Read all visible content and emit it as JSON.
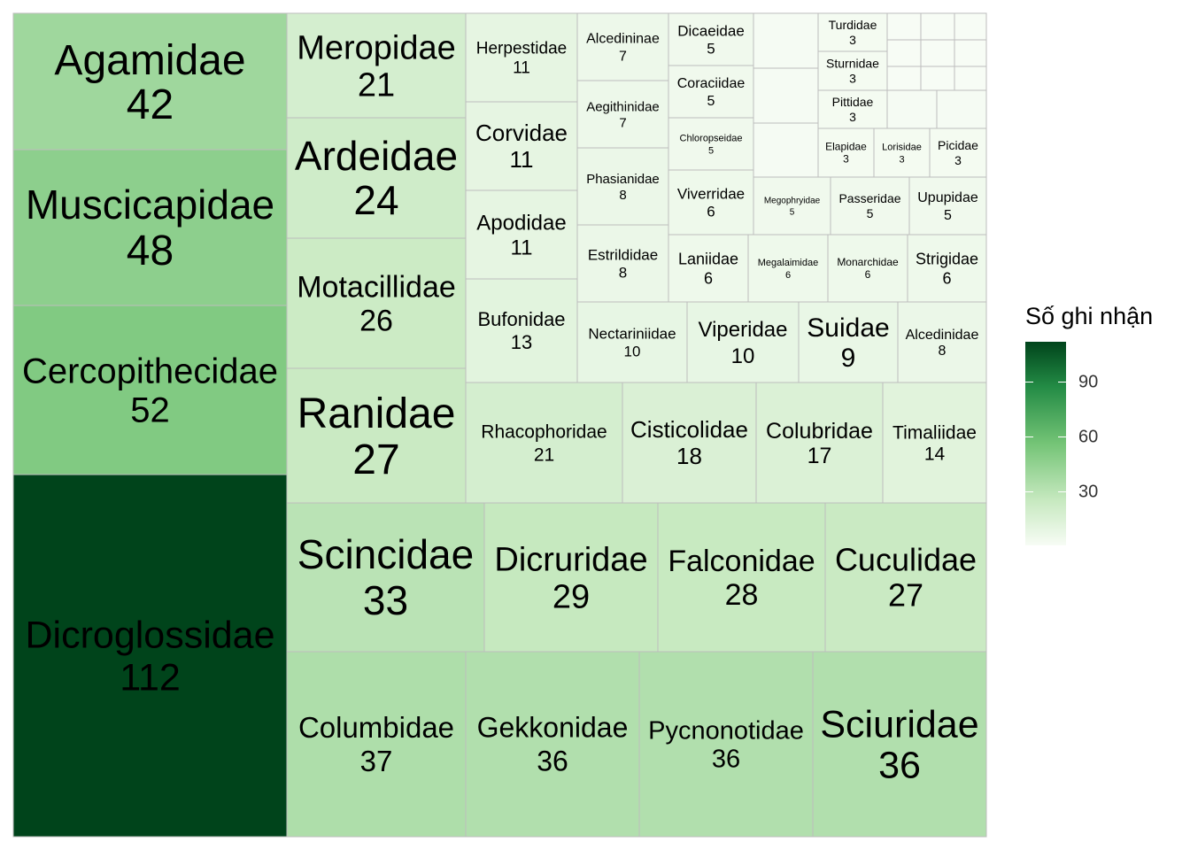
{
  "chart_data": {
    "type": "treemap",
    "legend": {
      "title": "Số ghi nhận",
      "ticks": [
        90,
        60,
        30
      ],
      "range": [
        1,
        112
      ],
      "colors": [
        "#f7fcf5",
        "#c7e9c0",
        "#74c476",
        "#238b45",
        "#00441b"
      ],
      "placement": "right"
    },
    "cells": [
      {
        "name": "Agamidae",
        "value": 42
      },
      {
        "name": "Muscicapidae",
        "value": 48
      },
      {
        "name": "Cercopithecidae",
        "value": 52
      },
      {
        "name": "Dicroglossidae",
        "value": 112
      },
      {
        "name": "Meropidae",
        "value": 21
      },
      {
        "name": "Ardeidae",
        "value": 24
      },
      {
        "name": "Motacillidae",
        "value": 26
      },
      {
        "name": "Ranidae",
        "value": 27
      },
      {
        "name": "Herpestidae",
        "value": 11
      },
      {
        "name": "Corvidae",
        "value": 11
      },
      {
        "name": "Apodidae",
        "value": 11
      },
      {
        "name": "Bufonidae",
        "value": 13
      },
      {
        "name": "Alcedininae",
        "value": 7
      },
      {
        "name": "Aegithinidae",
        "value": 7
      },
      {
        "name": "Phasianidae",
        "value": 8
      },
      {
        "name": "Estrildidae",
        "value": 8
      },
      {
        "name": "Dicaeidae",
        "value": 5
      },
      {
        "name": "Coraciidae",
        "value": 5
      },
      {
        "name": "Chloropseidae",
        "value": 5
      },
      {
        "name": "Viverridae",
        "value": 6
      },
      {
        "name": "Turdidae",
        "value": 3
      },
      {
        "name": "Sturnidae",
        "value": 3
      },
      {
        "name": "Pittidae",
        "value": 3
      },
      {
        "name": "Elapidae",
        "value": 3
      },
      {
        "name": "Lorisidae",
        "value": 3
      },
      {
        "name": "Picidae",
        "value": 3
      },
      {
        "name": "Megophryidae",
        "value": 5
      },
      {
        "name": "Passeridae",
        "value": 5
      },
      {
        "name": "Upupidae",
        "value": 5
      },
      {
        "name": "Laniidae",
        "value": 6
      },
      {
        "name": "Megalaimidae",
        "value": 6
      },
      {
        "name": "Monarchidae",
        "value": 6
      },
      {
        "name": "Strigidae",
        "value": 6
      },
      {
        "name": "Nectariniidae",
        "value": 10
      },
      {
        "name": "Viperidae",
        "value": 10
      },
      {
        "name": "Suidae",
        "value": 9
      },
      {
        "name": "Alcedinidae",
        "value": 8
      },
      {
        "name": "Rhacophoridae",
        "value": 21
      },
      {
        "name": "Cisticolidae",
        "value": 18
      },
      {
        "name": "Colubridae",
        "value": 17
      },
      {
        "name": "Timaliidae",
        "value": 14
      },
      {
        "name": "Scincidae",
        "value": 33
      },
      {
        "name": "Dicruridae",
        "value": 29
      },
      {
        "name": "Falconidae",
        "value": 28
      },
      {
        "name": "Cuculidae",
        "value": 27
      },
      {
        "name": "Columbidae",
        "value": 37
      },
      {
        "name": "Gekkonidae",
        "value": 36
      },
      {
        "name": "Pycnonotidae",
        "value": 36
      },
      {
        "name": "Sciuridae",
        "value": 36
      },
      {
        "name": "",
        "value": 2
      },
      {
        "name": "",
        "value": 2
      },
      {
        "name": "",
        "value": 2
      },
      {
        "name": "",
        "value": 2
      },
      {
        "name": "",
        "value": 2
      },
      {
        "name": "",
        "value": 1
      },
      {
        "name": "",
        "value": 1
      },
      {
        "name": "",
        "value": 1
      },
      {
        "name": "",
        "value": 1
      },
      {
        "name": "",
        "value": 1
      },
      {
        "name": "",
        "value": 1
      },
      {
        "name": "",
        "value": 1
      },
      {
        "name": "",
        "value": 1
      },
      {
        "name": "",
        "value": 1
      },
      {
        "name": "",
        "value": 1
      },
      {
        "name": "",
        "value": 1
      },
      {
        "name": "",
        "value": 1
      },
      {
        "name": "",
        "value": 1
      }
    ]
  }
}
